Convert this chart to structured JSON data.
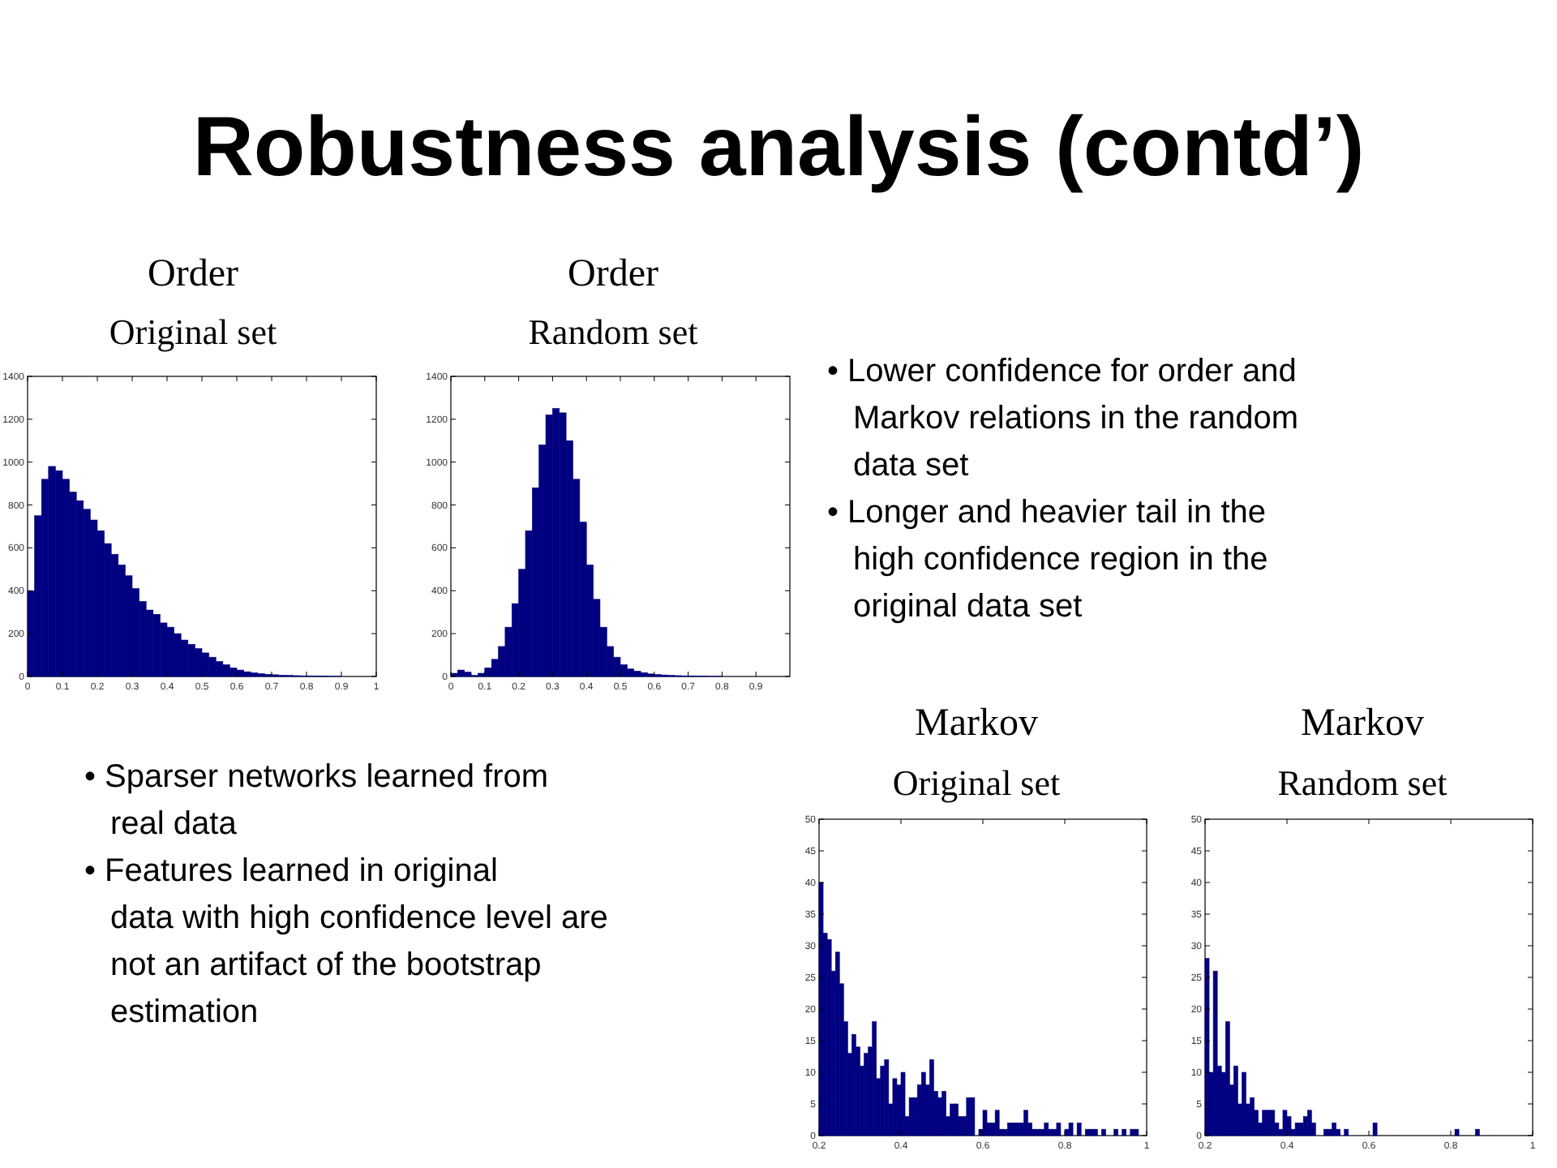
{
  "chart_data": [
    {
      "type": "other",
      "title": "Robustness analysis (contd’)"
    },
    {
      "type": "histogram",
      "title": "Order",
      "subtitle": "Original set",
      "color": "#000080",
      "xlim": [
        0,
        1
      ],
      "xticks": [
        0,
        0.1,
        0.2,
        0.3,
        0.4,
        0.5,
        0.6,
        0.7,
        0.8,
        0.9,
        1
      ],
      "ylim": [
        0,
        1400
      ],
      "yticks": [
        0,
        200,
        400,
        600,
        800,
        1000,
        1200,
        1400
      ],
      "bins": [
        0,
        0.02,
        0.04,
        0.06,
        0.08,
        0.1,
        0.12,
        0.14,
        0.16,
        0.18,
        0.2,
        0.22,
        0.24,
        0.26,
        0.28,
        0.3,
        0.32,
        0.34,
        0.36,
        0.38,
        0.4,
        0.42,
        0.44,
        0.46,
        0.48,
        0.5,
        0.52,
        0.54,
        0.56,
        0.58,
        0.6,
        0.62,
        0.64,
        0.66,
        0.68,
        0.7,
        0.72,
        0.74,
        0.76,
        0.78,
        0.8,
        0.82,
        0.84,
        0.86,
        0.88,
        0.9,
        0.92,
        0.94,
        0.96,
        0.98,
        1
      ],
      "values": [
        400,
        750,
        920,
        980,
        960,
        920,
        860,
        820,
        780,
        730,
        680,
        620,
        570,
        520,
        470,
        410,
        350,
        310,
        290,
        250,
        230,
        200,
        170,
        150,
        130,
        110,
        90,
        70,
        55,
        40,
        30,
        22,
        17,
        13,
        10,
        8,
        6,
        5,
        4,
        3,
        3,
        2,
        2,
        1,
        1,
        0,
        0,
        0,
        0,
        0
      ]
    },
    {
      "type": "histogram",
      "title": "Order",
      "subtitle": "Random set",
      "color": "#000080",
      "xlim": [
        0,
        1
      ],
      "xticks": [
        0,
        0.1,
        0.2,
        0.3,
        0.4,
        0.5,
        0.6,
        0.7,
        0.8,
        0.9
      ],
      "ylim": [
        0,
        1400
      ],
      "yticks": [
        0,
        200,
        400,
        600,
        800,
        1000,
        1200,
        1400
      ],
      "bins": [
        0,
        0.02,
        0.04,
        0.06,
        0.08,
        0.1,
        0.12,
        0.14,
        0.16,
        0.18,
        0.2,
        0.22,
        0.24,
        0.26,
        0.28,
        0.3,
        0.32,
        0.34,
        0.36,
        0.38,
        0.4,
        0.42,
        0.44,
        0.46,
        0.48,
        0.5,
        0.52,
        0.54,
        0.56,
        0.58,
        0.6,
        0.62,
        0.64,
        0.66,
        0.68,
        0.7,
        0.72,
        0.74,
        0.76,
        0.78,
        0.8,
        0.82,
        0.84,
        0.86,
        0.88,
        0.9,
        0.92,
        0.94,
        0.96,
        0.98,
        1
      ],
      "values": [
        15,
        30,
        20,
        5,
        15,
        40,
        80,
        140,
        230,
        340,
        500,
        680,
        880,
        1080,
        1220,
        1250,
        1230,
        1100,
        920,
        720,
        520,
        360,
        230,
        140,
        90,
        55,
        35,
        25,
        18,
        12,
        9,
        7,
        5,
        4,
        3,
        3,
        2,
        2,
        1,
        1,
        0,
        0,
        0,
        0,
        0,
        0,
        0,
        0,
        0,
        0
      ]
    },
    {
      "type": "other",
      "annotations": [
        "• Lower confidence for order and\nMarkov relations in the random\ndata set",
        "• Longer and heavier tail in the\nhigh confidence region in the\noriginal data set"
      ]
    },
    {
      "type": "other",
      "annotations": [
        "• Sparser networks learned from\nreal data",
        "• Features learned in original\ndata with high confidence level are\nnot an artifact of the bootstrap\nestimation"
      ]
    },
    {
      "type": "histogram",
      "title": "Markov",
      "subtitle": "Original set",
      "color": "#000080",
      "xlim": [
        0.2,
        1
      ],
      "xticks": [
        0.2,
        0.4,
        0.6,
        0.8,
        1
      ],
      "ylim": [
        0,
        50
      ],
      "yticks": [
        0,
        5,
        10,
        15,
        20,
        25,
        30,
        35,
        40,
        45,
        50
      ],
      "bins": [
        0.2,
        0.21,
        0.22,
        0.23,
        0.24,
        0.25,
        0.26,
        0.27,
        0.28,
        0.29,
        0.3,
        0.31,
        0.32,
        0.33,
        0.34,
        0.35,
        0.36,
        0.37,
        0.38,
        0.39,
        0.4,
        0.41,
        0.42,
        0.43,
        0.44,
        0.45,
        0.46,
        0.47,
        0.48,
        0.49,
        0.5,
        0.51,
        0.52,
        0.53,
        0.54,
        0.55,
        0.56,
        0.57,
        0.58,
        0.59,
        0.6,
        0.61,
        0.62,
        0.63,
        0.64,
        0.65,
        0.66,
        0.67,
        0.68,
        0.69,
        0.7,
        0.71,
        0.72,
        0.73,
        0.74,
        0.75,
        0.76,
        0.77,
        0.78,
        0.79,
        0.8,
        0.81,
        0.82,
        0.83,
        0.84,
        0.85,
        0.86,
        0.87,
        0.88,
        0.89,
        0.9,
        0.91,
        0.92,
        0.93,
        0.94,
        0.95,
        0.96,
        0.97,
        0.98,
        0.99,
        1
      ],
      "values": [
        40,
        32,
        31,
        26,
        29,
        24,
        18,
        13,
        16,
        14,
        11,
        13,
        14,
        18,
        9,
        11,
        12,
        5,
        9,
        8,
        10,
        3,
        6,
        6,
        8,
        10,
        8,
        12,
        7,
        6,
        7,
        3,
        5,
        5,
        3,
        3,
        6,
        6,
        0,
        1,
        4,
        2,
        2,
        4,
        1,
        1,
        2,
        2,
        2,
        2,
        4,
        2,
        1,
        1,
        1,
        2,
        1,
        1,
        2,
        0,
        1,
        2,
        0,
        2,
        0,
        1,
        1,
        1,
        0,
        1,
        0,
        0,
        1,
        0,
        1,
        0,
        1,
        1,
        0,
        0
      ]
    },
    {
      "type": "histogram",
      "title": "Markov",
      "subtitle": "Random set",
      "color": "#000080",
      "xlim": [
        0.2,
        1
      ],
      "xticks": [
        0.2,
        0.4,
        0.6,
        0.8,
        1
      ],
      "ylim": [
        0,
        50
      ],
      "yticks": [
        0,
        5,
        10,
        15,
        20,
        25,
        30,
        35,
        40,
        45,
        50
      ],
      "bins": [
        0.2,
        0.21,
        0.22,
        0.23,
        0.24,
        0.25,
        0.26,
        0.27,
        0.28,
        0.29,
        0.3,
        0.31,
        0.32,
        0.33,
        0.34,
        0.35,
        0.36,
        0.37,
        0.38,
        0.39,
        0.4,
        0.41,
        0.42,
        0.43,
        0.44,
        0.45,
        0.46,
        0.47,
        0.48,
        0.49,
        0.5,
        0.51,
        0.52,
        0.53,
        0.54,
        0.55,
        0.56,
        0.57,
        0.58,
        0.59,
        0.6,
        0.61,
        0.62,
        0.63,
        0.64,
        0.65,
        0.66,
        0.67,
        0.68,
        0.69,
        0.7,
        0.71,
        0.72,
        0.73,
        0.74,
        0.75,
        0.76,
        0.77,
        0.78,
        0.79,
        0.8,
        0.81,
        0.82,
        0.83,
        0.84,
        0.85,
        0.86,
        0.87,
        0.88,
        0.89,
        0.9,
        0.91,
        0.92,
        0.93,
        0.94,
        0.95,
        0.96,
        0.97,
        0.98,
        0.99,
        1
      ],
      "values": [
        28,
        10,
        26,
        11,
        10,
        18,
        8,
        11,
        5,
        10,
        5,
        6,
        4,
        2,
        4,
        4,
        4,
        2,
        1,
        4,
        3,
        1,
        2,
        2,
        3,
        4,
        2,
        0,
        0,
        1,
        1,
        2,
        1,
        0,
        1,
        0,
        0,
        0,
        0,
        0,
        0,
        2,
        0,
        0,
        0,
        0,
        0,
        0,
        0,
        0,
        0,
        0,
        0,
        0,
        0,
        0,
        0,
        0,
        0,
        0,
        0,
        1,
        0,
        0,
        0,
        0,
        1,
        0,
        0,
        0,
        0,
        0,
        0,
        0,
        0,
        0,
        0,
        0,
        0,
        0
      ]
    }
  ]
}
